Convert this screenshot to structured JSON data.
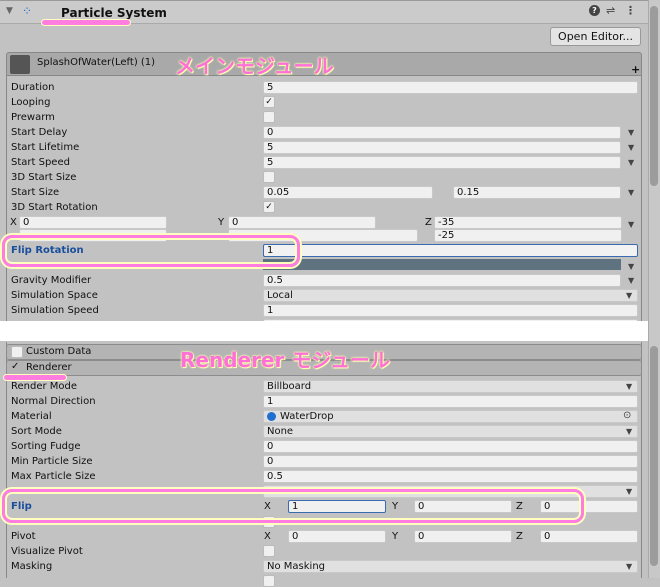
{
  "header": {
    "title": "Particle System",
    "icons": [
      "foldout-arrow-icon",
      "particle-system-icon",
      "help-icon",
      "presets-icon",
      "more-menu-icon"
    ],
    "open_editor": "Open Editor..."
  },
  "main_module": {
    "name": "SplashOfWater(Left) (1)",
    "annotation": "メインモジュール",
    "rows": [
      {
        "label": "Duration",
        "value": "5"
      },
      {
        "label": "Looping",
        "checked": true
      },
      {
        "label": "Prewarm",
        "checked": false
      },
      {
        "label": "Start Delay",
        "value": "0"
      },
      {
        "label": "Start Lifetime",
        "value": "5"
      },
      {
        "label": "Start Speed",
        "value": "5"
      },
      {
        "label": "3D Start Size",
        "checked": false
      },
      {
        "label": "Start Size",
        "value": "0.05",
        "value2": "0.15"
      },
      {
        "label": "3D Start Rotation",
        "checked": true
      }
    ],
    "rotation": {
      "x_label": "X",
      "y_label": "Y",
      "z_label": "Z",
      "x": "0",
      "y": "0",
      "z": "-35",
      "z2": "-25"
    },
    "flip_rotation": {
      "label": "Flip Rotation",
      "value": "1"
    },
    "rows2": [
      {
        "label": "Gravity Modifier",
        "value": "0.5"
      },
      {
        "label": "Simulation Space",
        "value": "Local"
      },
      {
        "label": "Simulation Speed",
        "value": "1"
      }
    ]
  },
  "renderer_module": {
    "custom_data": "Custom Data",
    "renderer": "Renderer",
    "annotation": "Renderer モジュール",
    "rows": [
      {
        "label": "Render Mode",
        "value": "Billboard"
      },
      {
        "label": "Normal Direction",
        "value": "1"
      },
      {
        "label": "Material",
        "value": "WaterDrop"
      },
      {
        "label": "Sort Mode",
        "value": "None"
      },
      {
        "label": "Sorting Fudge",
        "value": "0"
      },
      {
        "label": "Min Particle Size",
        "value": "0"
      },
      {
        "label": "Max Particle Size",
        "value": "0.5"
      }
    ],
    "flip": {
      "label": "Flip",
      "x_label": "X",
      "y_label": "Y",
      "z_label": "Z",
      "x": "1",
      "y": "0",
      "z": "0"
    },
    "pivot": {
      "label": "Pivot",
      "x_label": "X",
      "y_label": "Y",
      "z_label": "Z",
      "x": "0",
      "y": "0",
      "z": "0"
    },
    "visualize_pivot": {
      "label": "Visualize Pivot",
      "checked": false
    },
    "masking": {
      "label": "Masking",
      "value": "No Masking"
    }
  },
  "colors": {
    "highlight": "#ff7de0",
    "label_blue": "#1a4f9c",
    "icon_blue": "#1e6fd0"
  }
}
